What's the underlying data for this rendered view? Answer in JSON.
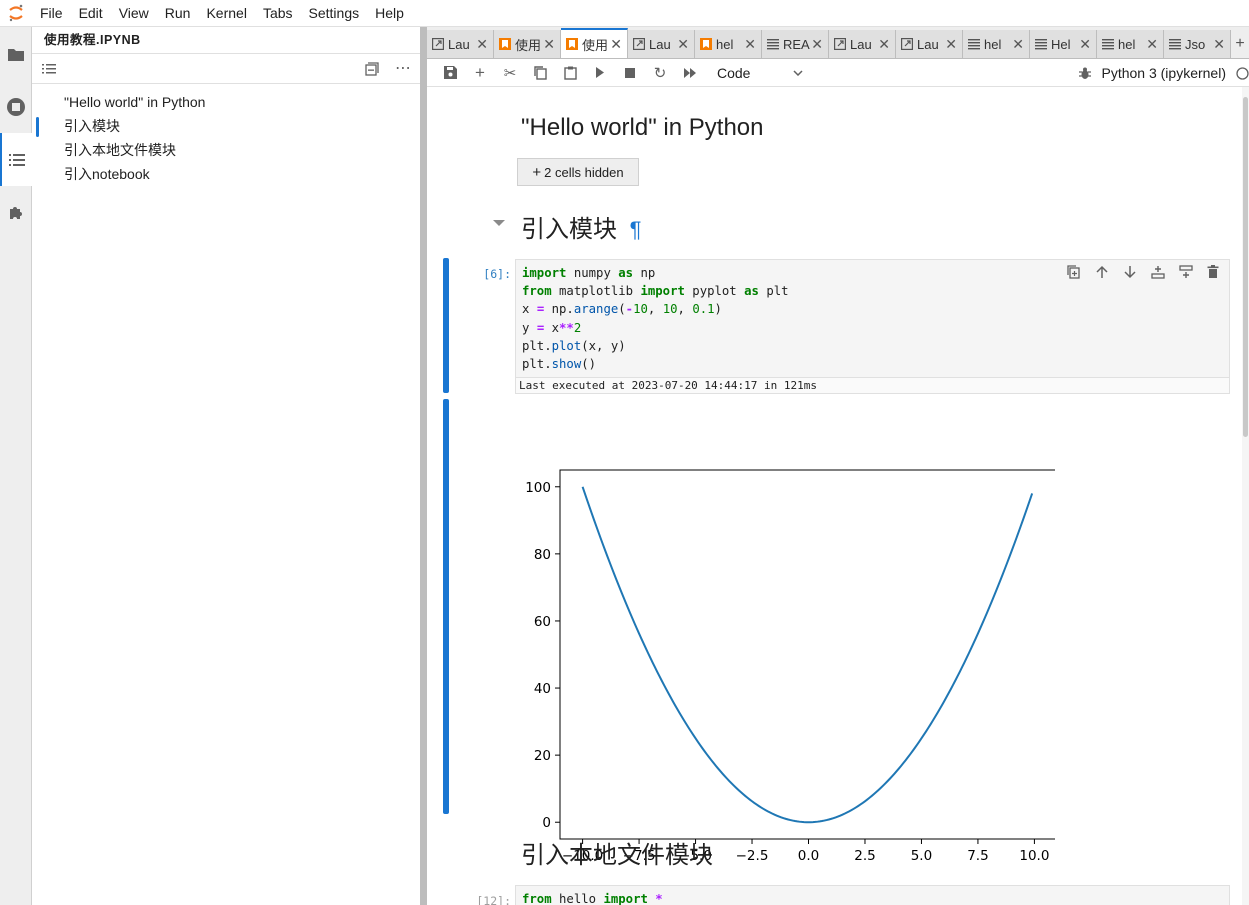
{
  "menubar": {
    "items": [
      "File",
      "Edit",
      "View",
      "Run",
      "Kernel",
      "Tabs",
      "Settings",
      "Help"
    ]
  },
  "sidebar": {
    "icons": [
      "folder-icon",
      "running-icon",
      "toc-icon",
      "extension-icon"
    ]
  },
  "left_panel": {
    "title": "使用教程.IPYNB",
    "toc": [
      "\"Hello world\" in Python",
      "引入模块",
      "引入本地文件模块",
      "引入notebook"
    ]
  },
  "tabs": [
    {
      "label": "Lau",
      "icon": "launcher-icon"
    },
    {
      "label": "使用",
      "icon": "notebook-icon"
    },
    {
      "label": "使用",
      "icon": "notebook-icon",
      "active": true
    },
    {
      "label": "Lau",
      "icon": "launcher-icon"
    },
    {
      "label": "hel",
      "icon": "notebook-icon"
    },
    {
      "label": "REA",
      "icon": "text-icon"
    },
    {
      "label": "Lau",
      "icon": "launcher-icon"
    },
    {
      "label": "Lau",
      "icon": "launcher-icon"
    },
    {
      "label": "hel",
      "icon": "text-icon"
    },
    {
      "label": "Hel",
      "icon": "text-icon"
    },
    {
      "label": "hel",
      "icon": "text-icon"
    },
    {
      "label": "Jso",
      "icon": "text-icon"
    }
  ],
  "toolbar": {
    "cell_type": "Code",
    "kernel_name": "Python 3 (ipykernel)"
  },
  "notebook": {
    "heading1": "\"Hello world\" in Python",
    "hidden_cells": "2 cells hidden",
    "heading2": "引入模块",
    "anchor": "¶",
    "cell1": {
      "prompt": "[6]:",
      "exec_time": "Last executed at 2023-07-20 14:44:17 in 121ms"
    },
    "heading3": "引入本地文件模块",
    "cell2": {
      "prompt": "[12]:"
    }
  },
  "chart_data": {
    "type": "line",
    "x_start": -10,
    "x_end": 9.9,
    "x_step": 0.1,
    "formula": "y = x**2",
    "xlim": [
      -11,
      11
    ],
    "ylim": [
      -5,
      105
    ],
    "xticks": [
      "−10.0",
      "−7.5",
      "−5.0",
      "−2.5",
      "0.0",
      "2.5",
      "5.0",
      "7.5",
      "10.0"
    ],
    "yticks": [
      "0",
      "20",
      "40",
      "60",
      "80",
      "100"
    ],
    "line_color": "#1f77b4"
  }
}
